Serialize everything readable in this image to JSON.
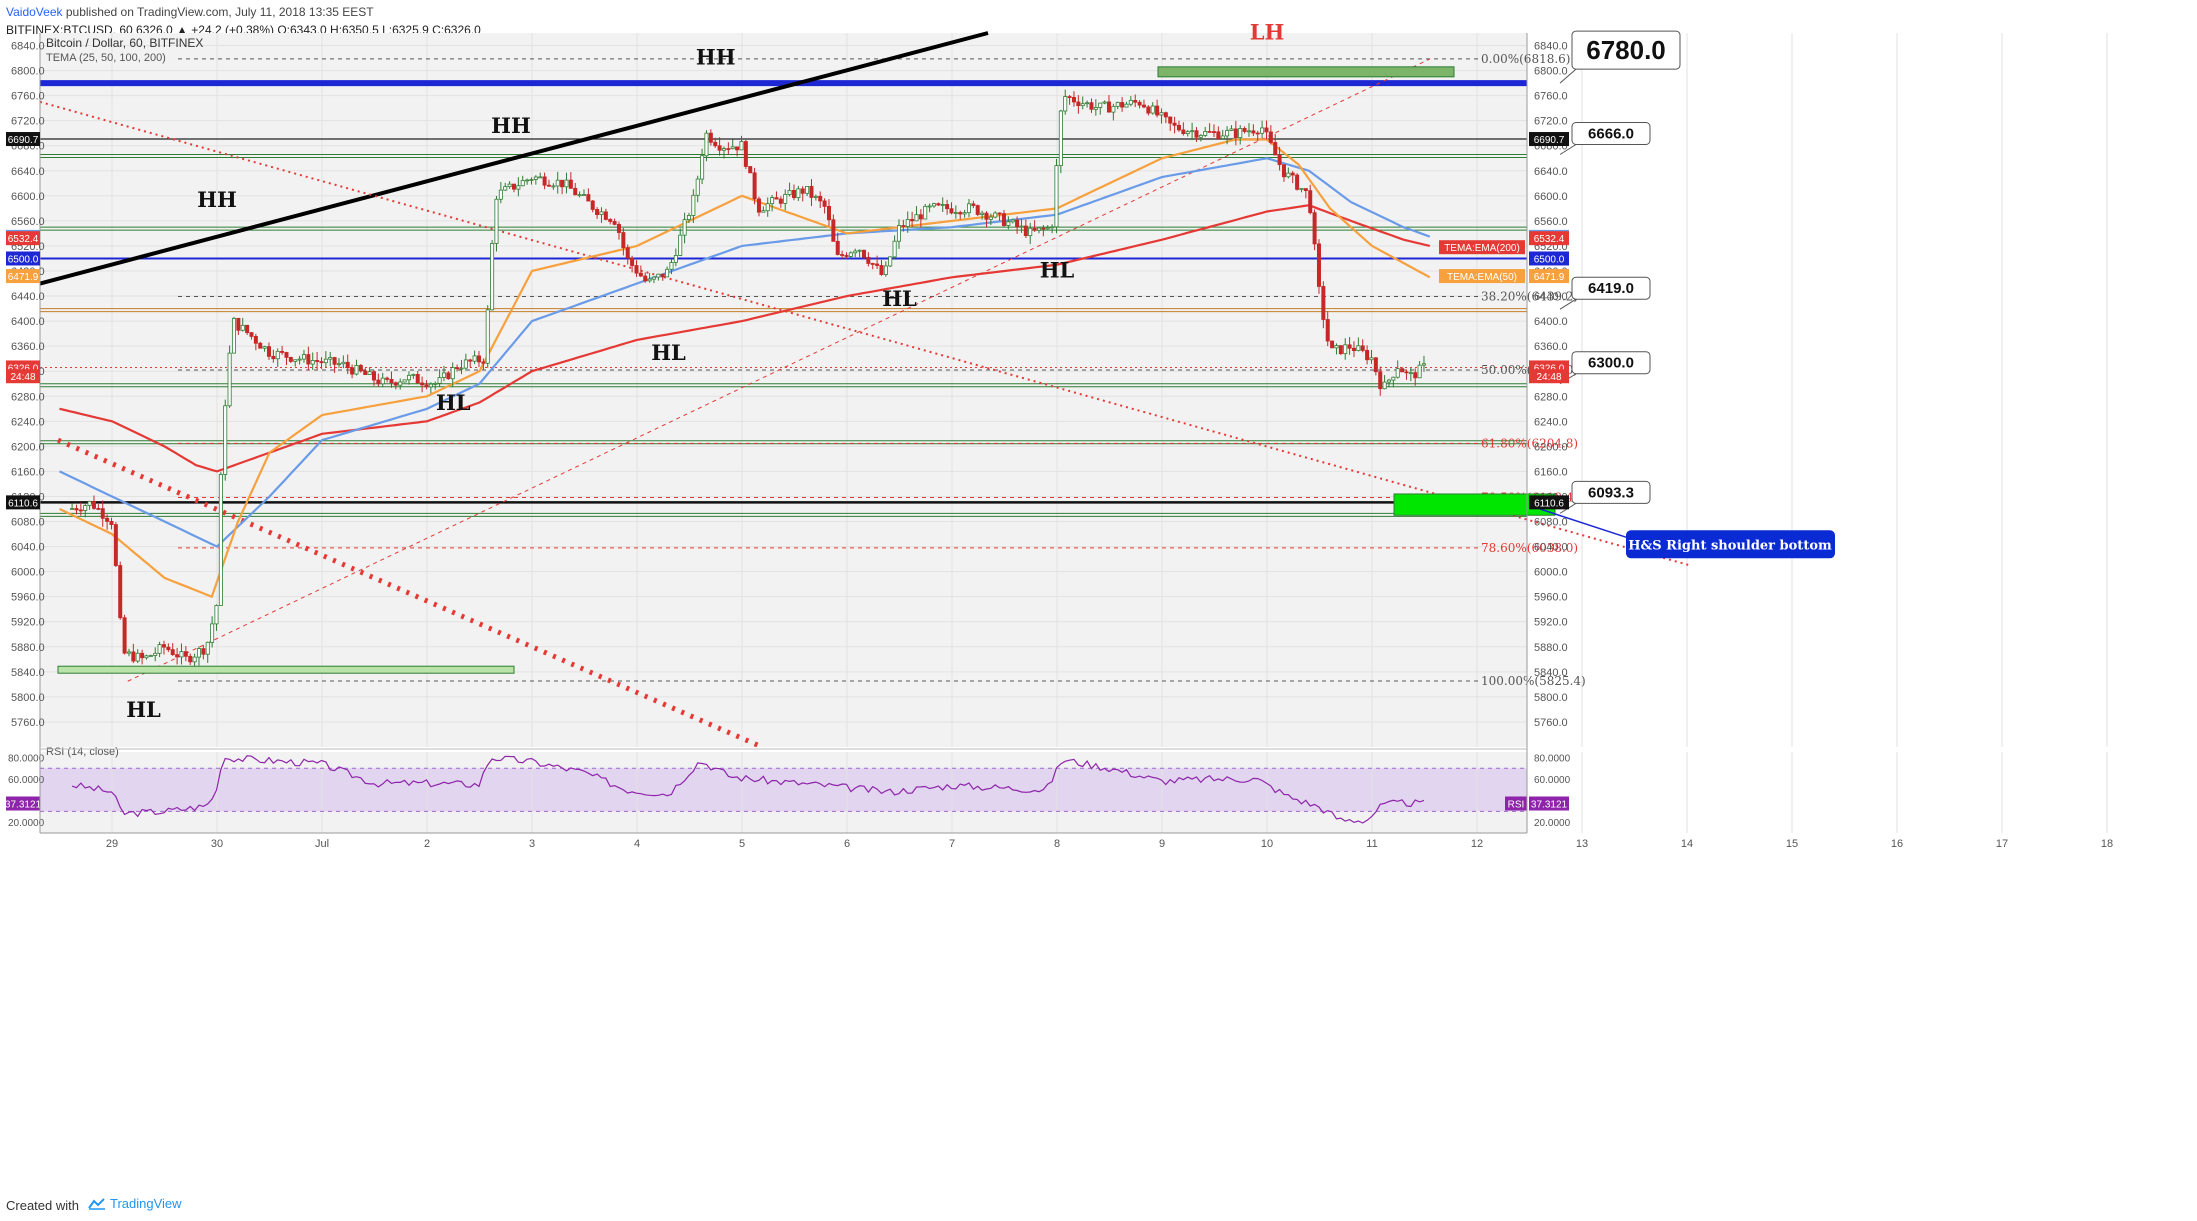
{
  "header": {
    "author": "VaidoVeek",
    "published": "published on TradingView.com, July 11, 2018 13:35 EEST",
    "symbol_line": "BITFINEX:BTCUSD, 60  6326.0  ▲ +24.2 (+0.38%) O:6343.0 H:6350.5 L:6325.9 C:6326.0"
  },
  "footer": {
    "created_with": "Created with",
    "brand": "TradingView",
    "brand_icon": "tradingview-logo-icon"
  },
  "colors": {
    "bg": "#ffffff",
    "pane_bg": "#f2f2f2",
    "up_candle": "#2e7d32",
    "down_candle": "#c62828",
    "ema200": "#e53935",
    "ema100": "#6a9be8",
    "ema50": "#f7a03e",
    "blue_level": "#1d28d4",
    "rsi_line": "#8e24aa",
    "rsi_band": "#e1d5ef",
    "green_zone": "#00e600"
  },
  "chart_data": {
    "type": "candlestick",
    "title": "Bitcoin / Dollar, 60, BITFINEX",
    "indicator_label": "TEMA (25, 50, 100, 200)",
    "ylim": [
      5720,
      6860
    ],
    "y_ticks": [
      6840,
      6800,
      6760,
      6720,
      6680,
      6640,
      6600,
      6560,
      6520,
      6480,
      6440,
      6400,
      6360,
      6320,
      6280,
      6240,
      6200,
      6160,
      6120,
      6080,
      6040,
      6000,
      5960,
      5920,
      5880,
      5840,
      5800,
      5760
    ],
    "x_ticks": [
      {
        "label": "29",
        "day": 0
      },
      {
        "label": "30",
        "day": 1
      },
      {
        "label": "Jul",
        "day": 2
      },
      {
        "label": "2",
        "day": 3
      },
      {
        "label": "3",
        "day": 4
      },
      {
        "label": "4",
        "day": 5
      },
      {
        "label": "5",
        "day": 6
      },
      {
        "label": "6",
        "day": 7
      },
      {
        "label": "7",
        "day": 8
      },
      {
        "label": "8",
        "day": 9
      },
      {
        "label": "9",
        "day": 10
      },
      {
        "label": "10",
        "day": 11
      },
      {
        "label": "11",
        "day": 12
      },
      {
        "label": "12",
        "day": 13
      },
      {
        "label": "13",
        "day": 14
      },
      {
        "label": "14",
        "day": 15
      },
      {
        "label": "15",
        "day": 16
      },
      {
        "label": "16",
        "day": 17
      },
      {
        "label": "17",
        "day": 18
      },
      {
        "label": "18",
        "day": 19
      }
    ],
    "price_anchors": [
      [
        -0.4,
        6100
      ],
      [
        -0.2,
        6110
      ],
      [
        0,
        6080
      ],
      [
        0.05,
        5980
      ],
      [
        0.1,
        5870
      ],
      [
        0.3,
        5860
      ],
      [
        0.5,
        5880
      ],
      [
        0.7,
        5860
      ],
      [
        0.9,
        5880
      ],
      [
        1.0,
        5950
      ],
      [
        1.05,
        6220
      ],
      [
        1.15,
        6400
      ],
      [
        1.3,
        6380
      ],
      [
        1.5,
        6350
      ],
      [
        1.8,
        6340
      ],
      [
        2.2,
        6330
      ],
      [
        2.6,
        6300
      ],
      [
        2.8,
        6310
      ],
      [
        3.1,
        6300
      ],
      [
        3.3,
        6330
      ],
      [
        3.55,
        6340
      ],
      [
        3.65,
        6600
      ],
      [
        4.0,
        6630
      ],
      [
        4.3,
        6620
      ],
      [
        4.6,
        6580
      ],
      [
        4.8,
        6560
      ],
      [
        4.9,
        6500
      ],
      [
        5.1,
        6460
      ],
      [
        5.3,
        6480
      ],
      [
        5.55,
        6600
      ],
      [
        5.65,
        6700
      ],
      [
        5.8,
        6680
      ],
      [
        6.0,
        6680
      ],
      [
        6.15,
        6580
      ],
      [
        6.3,
        6590
      ],
      [
        6.6,
        6610
      ],
      [
        6.8,
        6580
      ],
      [
        6.9,
        6500
      ],
      [
        7.1,
        6520
      ],
      [
        7.35,
        6470
      ],
      [
        7.5,
        6550
      ],
      [
        7.8,
        6580
      ],
      [
        8.2,
        6580
      ],
      [
        8.5,
        6560
      ],
      [
        8.75,
        6540
      ],
      [
        8.95,
        6550
      ],
      [
        9.05,
        6760
      ],
      [
        9.4,
        6740
      ],
      [
        9.8,
        6750
      ],
      [
        10.1,
        6710
      ],
      [
        10.4,
        6700
      ],
      [
        10.7,
        6700
      ],
      [
        10.95,
        6710
      ],
      [
        11.15,
        6640
      ],
      [
        11.4,
        6600
      ],
      [
        11.5,
        6440
      ],
      [
        11.6,
        6350
      ],
      [
        11.8,
        6360
      ],
      [
        12.0,
        6340
      ],
      [
        12.1,
        6290
      ],
      [
        12.25,
        6330
      ],
      [
        12.35,
        6310
      ],
      [
        12.5,
        6326
      ]
    ],
    "ema200_anchors": [
      [
        -0.5,
        6260
      ],
      [
        0,
        6240
      ],
      [
        0.5,
        6200
      ],
      [
        0.8,
        6170
      ],
      [
        1.0,
        6160
      ],
      [
        1.5,
        6190
      ],
      [
        2,
        6220
      ],
      [
        3,
        6240
      ],
      [
        3.5,
        6270
      ],
      [
        4,
        6320
      ],
      [
        5,
        6370
      ],
      [
        6,
        6400
      ],
      [
        7,
        6440
      ],
      [
        8,
        6470
      ],
      [
        9,
        6490
      ],
      [
        10,
        6530
      ],
      [
        11,
        6575
      ],
      [
        11.4,
        6585
      ],
      [
        11.8,
        6560
      ],
      [
        12.3,
        6530
      ],
      [
        12.55,
        6520
      ]
    ],
    "ema100_anchors": [
      [
        -0.5,
        6160
      ],
      [
        0,
        6120
      ],
      [
        0.5,
        6080
      ],
      [
        1.0,
        6040
      ],
      [
        1.5,
        6120
      ],
      [
        2,
        6210
      ],
      [
        3,
        6260
      ],
      [
        3.5,
        6300
      ],
      [
        4,
        6400
      ],
      [
        5,
        6460
      ],
      [
        6,
        6520
      ],
      [
        7,
        6540
      ],
      [
        8,
        6550
      ],
      [
        9,
        6570
      ],
      [
        10,
        6630
      ],
      [
        11,
        6660
      ],
      [
        11.4,
        6640
      ],
      [
        11.8,
        6590
      ],
      [
        12.3,
        6550
      ],
      [
        12.55,
        6535
      ]
    ],
    "ema50_anchors": [
      [
        -0.5,
        6100
      ],
      [
        0,
        6060
      ],
      [
        0.5,
        5990
      ],
      [
        0.95,
        5960
      ],
      [
        1.2,
        6080
      ],
      [
        1.5,
        6190
      ],
      [
        2,
        6250
      ],
      [
        3,
        6280
      ],
      [
        3.5,
        6320
      ],
      [
        4,
        6480
      ],
      [
        5,
        6520
      ],
      [
        5.5,
        6560
      ],
      [
        6,
        6600
      ],
      [
        7,
        6540
      ],
      [
        8,
        6560
      ],
      [
        9,
        6580
      ],
      [
        10,
        6660
      ],
      [
        10.7,
        6690
      ],
      [
        11.0,
        6690
      ],
      [
        11.3,
        6650
      ],
      [
        11.6,
        6580
      ],
      [
        12.0,
        6520
      ],
      [
        12.55,
        6470
      ]
    ],
    "rsi_anchors": [
      [
        -0.4,
        55
      ],
      [
        0,
        48
      ],
      [
        0.1,
        28
      ],
      [
        0.5,
        30
      ],
      [
        0.9,
        35
      ],
      [
        1.0,
        50
      ],
      [
        1.05,
        80
      ],
      [
        1.2,
        79
      ],
      [
        2.0,
        74
      ],
      [
        2.5,
        56
      ],
      [
        3.0,
        56
      ],
      [
        3.5,
        55
      ],
      [
        3.6,
        80
      ],
      [
        4.0,
        76
      ],
      [
        4.5,
        66
      ],
      [
        4.9,
        50
      ],
      [
        5.3,
        46
      ],
      [
        5.6,
        77
      ],
      [
        5.9,
        62
      ],
      [
        6.3,
        58
      ],
      [
        6.8,
        54
      ],
      [
        7.4,
        48
      ],
      [
        8.0,
        54
      ],
      [
        8.9,
        50
      ],
      [
        9.05,
        78
      ],
      [
        9.5,
        70
      ],
      [
        10.0,
        58
      ],
      [
        10.5,
        60
      ],
      [
        10.9,
        60
      ],
      [
        11.2,
        44
      ],
      [
        11.5,
        34
      ],
      [
        11.7,
        22
      ],
      [
        11.95,
        22
      ],
      [
        12.1,
        36
      ],
      [
        12.3,
        38
      ],
      [
        12.5,
        37
      ]
    ],
    "rsi": {
      "label": "RSI (14, close)",
      "ylim": [
        10,
        85
      ],
      "ticks": [
        80,
        60,
        20
      ],
      "band": [
        30,
        70
      ],
      "value": 37.3121
    },
    "horizontal_levels": [
      {
        "price": 6780,
        "style": "thick-blue"
      },
      {
        "price": 6500,
        "style": "blue"
      },
      {
        "price": 6690.7,
        "style": "black"
      },
      {
        "price": 6110.6,
        "style": "thick-black"
      },
      {
        "price": 6666,
        "style": "green-double"
      },
      {
        "price": 6550,
        "style": "green-double"
      },
      {
        "price": 6420,
        "style": "orange-double"
      },
      {
        "price": 6300,
        "style": "green-double"
      },
      {
        "price": 6209,
        "style": "green-double"
      },
      {
        "price": 6093,
        "style": "green-double"
      },
      {
        "price": 6326,
        "style": "red-dotted"
      }
    ],
    "fib_levels": [
      {
        "label": "0.00%(6818.6)",
        "price": 6818.6,
        "color": "#555555"
      },
      {
        "label": "38.20%(6439.2)",
        "price": 6439.2,
        "color": "#555555"
      },
      {
        "label": "50.00%(6322.0)",
        "price": 6322.0,
        "color": "#555555"
      },
      {
        "label": "61.80%(6204.8)",
        "price": 6204.8,
        "color": "#e53935"
      },
      {
        "label": "70.50%(6118.4)",
        "price": 6118.4,
        "color": "#e53935"
      },
      {
        "label": "78.60%(6038.0)",
        "price": 6038.0,
        "color": "#e53935"
      },
      {
        "label": "100.00%(5825.4)",
        "price": 5825.4,
        "color": "#555555"
      }
    ],
    "callouts": [
      {
        "text": "6780.0",
        "price": 6780,
        "big": true
      },
      {
        "text": "6666.0",
        "price": 6666
      },
      {
        "text": "6419.0",
        "price": 6419
      },
      {
        "text": "6300.0",
        "price": 6300
      },
      {
        "text": "6093.3",
        "price": 6093
      }
    ],
    "pattern_labels": [
      {
        "text": "HH",
        "day": 1.0,
        "price": 6582
      },
      {
        "text": "HH",
        "day": 3.8,
        "price": 6700
      },
      {
        "text": "HH",
        "day": 5.75,
        "price": 6810
      },
      {
        "text": "LH",
        "day": 11.0,
        "price": 6850,
        "color": "#e53935"
      },
      {
        "text": "HL",
        "day": 0.3,
        "price": 5768
      },
      {
        "text": "HL",
        "day": 3.25,
        "price": 6258
      },
      {
        "text": "HL",
        "day": 5.3,
        "price": 6338
      },
      {
        "text": "HL",
        "day": 7.5,
        "price": 6424
      },
      {
        "text": "HL",
        "day": 9.0,
        "price": 6470
      }
    ],
    "annotation": {
      "text": "H&S Right shoulder bottom"
    },
    "axis_badges": {
      "right": [
        {
          "text": "6690.7",
          "price": 6690.7,
          "bg": "#111111"
        },
        {
          "text": "6534.5",
          "price": 6534.5,
          "bg": "#6a9be8"
        },
        {
          "text": "6532.4",
          "price": 6532.4,
          "bg": "#e53935"
        },
        {
          "text": "6500.0",
          "price": 6500,
          "bg": "#1d28d4"
        },
        {
          "text": "6471.9",
          "price": 6471.9,
          "bg": "#f7a03e"
        },
        {
          "text": "6326.0",
          "price": 6326,
          "bg": "#e53935"
        },
        {
          "text": "24:48",
          "price": 6312,
          "bg": "#e53935"
        },
        {
          "text": "6110.6",
          "price": 6110.6,
          "bg": "#111111"
        }
      ],
      "left": [
        {
          "text": "6690.7",
          "price": 6690.7,
          "bg": "#111111"
        },
        {
          "text": "6534.5",
          "price": 6534.5,
          "bg": "#6a9be8"
        },
        {
          "text": "6532.4",
          "price": 6532.4,
          "bg": "#e53935"
        },
        {
          "text": "6500.0",
          "price": 6500,
          "bg": "#1d28d4"
        },
        {
          "text": "6471.9",
          "price": 6471.9,
          "bg": "#f7a03e"
        },
        {
          "text": "6326.0",
          "price": 6326,
          "bg": "#e53935"
        },
        {
          "text": "24:48",
          "price": 6312,
          "bg": "#e53935"
        },
        {
          "text": "6110.6",
          "price": 6110.6,
          "bg": "#111111"
        }
      ],
      "tema_labels": [
        {
          "text": "TEMA:EMA(200)",
          "price": 6518,
          "bg": "#e53935"
        },
        {
          "text": "TEMA:EMA(50)",
          "price": 6471.9,
          "bg": "#f7a03e"
        }
      ],
      "rsi_right": {
        "text": "RSI",
        "value_text": "37.3121"
      },
      "rsi_left": {
        "text": "37.3121"
      },
      "rsi_tick_labels": [
        "80.0000",
        "60.0000",
        "20.0000"
      ]
    }
  }
}
